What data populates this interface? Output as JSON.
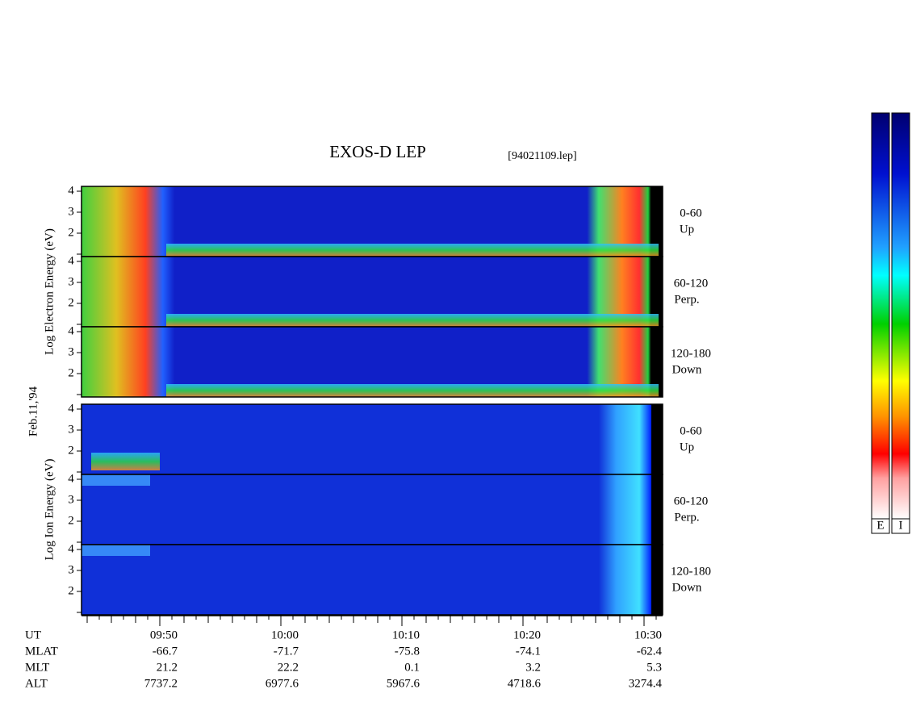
{
  "header": {
    "title": "EXOS-D LEP",
    "file": "[94021109.lep]"
  },
  "date": "Feb.11,'94",
  "electron": {
    "axis_label": "Log  Electron  Energy (eV)",
    "panels": [
      {
        "range": "0-60",
        "direction": "Up"
      },
      {
        "range": "60-120",
        "direction": "Perp."
      },
      {
        "range": "120-180",
        "direction": "Down"
      }
    ]
  },
  "ion": {
    "axis_label": "Log  Ion  Energy (eV)",
    "panels": [
      {
        "range": "0-60",
        "direction": "Up"
      },
      {
        "range": "60-120",
        "direction": "Perp."
      },
      {
        "range": "120-180",
        "direction": "Down"
      }
    ]
  },
  "y_tick_labels": [
    "4",
    "3",
    "2"
  ],
  "orbit_table": {
    "labels": [
      "UT",
      "MLAT",
      "MLT",
      "ALT"
    ],
    "rows": [
      [
        "09:50",
        "10:00",
        "10:10",
        "10:20",
        "10:30"
      ],
      [
        "-66.7",
        "-71.7",
        "-75.8",
        "-74.1",
        "-62.4"
      ],
      [
        "21.2",
        "22.2",
        "0.1",
        "3.2",
        "5.3"
      ],
      [
        "7737.2",
        "6977.6",
        "5967.6",
        "4718.6",
        "3274.4"
      ]
    ]
  },
  "colorbar": {
    "labels": [
      "E",
      "I"
    ]
  }
}
